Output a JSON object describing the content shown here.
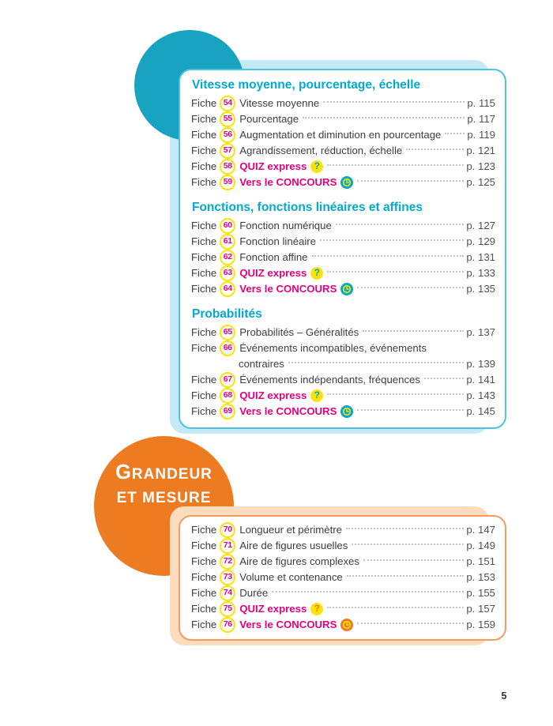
{
  "page": {
    "folio": "5"
  },
  "labels": {
    "fiche_prefix": "Fiche"
  },
  "colors": {
    "cyan": "#03A9CC",
    "cyan_border": "#4CC3E0",
    "teal": "#18A3C0",
    "lightblue": "#C5E9F5",
    "magenta": "#E5007D",
    "yellow": "#FFE207",
    "orange": "#EC7B21",
    "orange_border": "#F49B5F",
    "peach": "#FBDCBE",
    "text": "#3D3D3C",
    "page_gray": "#505052",
    "leader_gray": "#C4C4C4"
  },
  "top_panel": {
    "sections": [
      {
        "heading": "Vitesse moyenne, pourcentage, échelle",
        "entries": [
          {
            "num": "54",
            "title": "Vitesse moyenne",
            "page": "p. 115"
          },
          {
            "num": "55",
            "title": "Pourcentage",
            "page": "p. 117"
          },
          {
            "num": "56",
            "title": "Augmentation et diminution en pourcentage",
            "page": "p. 119"
          },
          {
            "num": "57",
            "title": "Agrandissement, réduction, échelle",
            "page": "p. 121"
          },
          {
            "num": "58",
            "title": "QUIZ express",
            "page": "p. 123",
            "kind": "quiz"
          },
          {
            "num": "59",
            "title": "Vers le CONCOURS",
            "page": "p. 125",
            "kind": "concours"
          }
        ]
      },
      {
        "heading": "Fonctions, fonctions linéaires et affines",
        "entries": [
          {
            "num": "60",
            "title": "Fonction numérique",
            "page": "p. 127"
          },
          {
            "num": "61",
            "title": "Fonction linéaire",
            "page": "p. 129"
          },
          {
            "num": "62",
            "title": "Fonction affine",
            "page": "p. 131"
          },
          {
            "num": "63",
            "title": "QUIZ express",
            "page": "p. 133",
            "kind": "quiz"
          },
          {
            "num": "64",
            "title": "Vers le CONCOURS",
            "page": "p. 135",
            "kind": "concours"
          }
        ]
      },
      {
        "heading": "Probabilités",
        "entries": [
          {
            "num": "65",
            "title": "Probabilités – Généralités",
            "page": "p. 137"
          },
          {
            "num": "66",
            "title_lines": [
              "Événements incompatibles, événements",
              "contraires"
            ],
            "page": "p. 139"
          },
          {
            "num": "67",
            "title": "Événements indépendants, fréquences",
            "page": "p. 141"
          },
          {
            "num": "68",
            "title": "QUIZ express",
            "page": "p. 143",
            "kind": "quiz"
          },
          {
            "num": "69",
            "title": "Vers le CONCOURS",
            "page": "p. 145",
            "kind": "concours"
          }
        ]
      }
    ]
  },
  "grandeur_circle": {
    "line1": "GRANDEUR",
    "line2": "ET MESURE"
  },
  "bottom_panel": {
    "entries": [
      {
        "num": "70",
        "title": "Longueur et périmètre",
        "page": "p. 147"
      },
      {
        "num": "71",
        "title": "Aire de figures usuelles",
        "page": "p. 149"
      },
      {
        "num": "72",
        "title": "Aire de figures complexes",
        "page": "p. 151"
      },
      {
        "num": "73",
        "title": "Volume et contenance",
        "page": "p. 153"
      },
      {
        "num": "74",
        "title": "Durée",
        "page": "p. 155"
      },
      {
        "num": "75",
        "title": "QUIZ express",
        "page": "p. 157",
        "kind": "quiz"
      },
      {
        "num": "76",
        "title": "Vers le CONCOURS",
        "page": "p. 159",
        "kind": "concours"
      }
    ]
  }
}
